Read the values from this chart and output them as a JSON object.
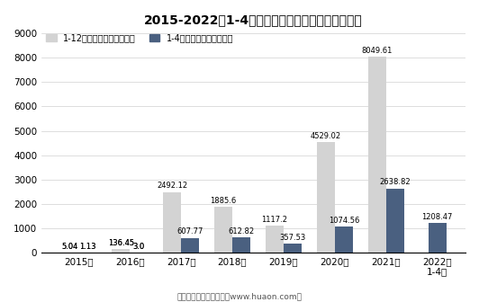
{
  "title": "2015-2022年1-4月郑州商品交易所锰硅期货成交量",
  "categories": [
    "2015年",
    "2016年",
    "2017年",
    "2018年",
    "2019年",
    "2020年",
    "2021年",
    "2022年\n1-4月"
  ],
  "annual_values": [
    5.04,
    136.45,
    2492.12,
    1885.6,
    1117.2,
    4529.02,
    8049.61,
    null
  ],
  "monthly_values": [
    1.13,
    3.0,
    607.77,
    612.82,
    357.53,
    1074.56,
    2638.82,
    1208.47
  ],
  "annual_color": "#d3d3d3",
  "monthly_color": "#4a6080",
  "legend_annual": "1-12月期货成交量（万手）",
  "legend_monthly": "1-4月期货成交量（万手）",
  "ylim": [
    0,
    9000
  ],
  "yticks": [
    0,
    1000,
    2000,
    3000,
    4000,
    5000,
    6000,
    7000,
    8000,
    9000
  ],
  "footer": "制图：华经产业研究院（www.huaon.com）",
  "bg_color": "#ffffff",
  "bar_width": 0.35
}
